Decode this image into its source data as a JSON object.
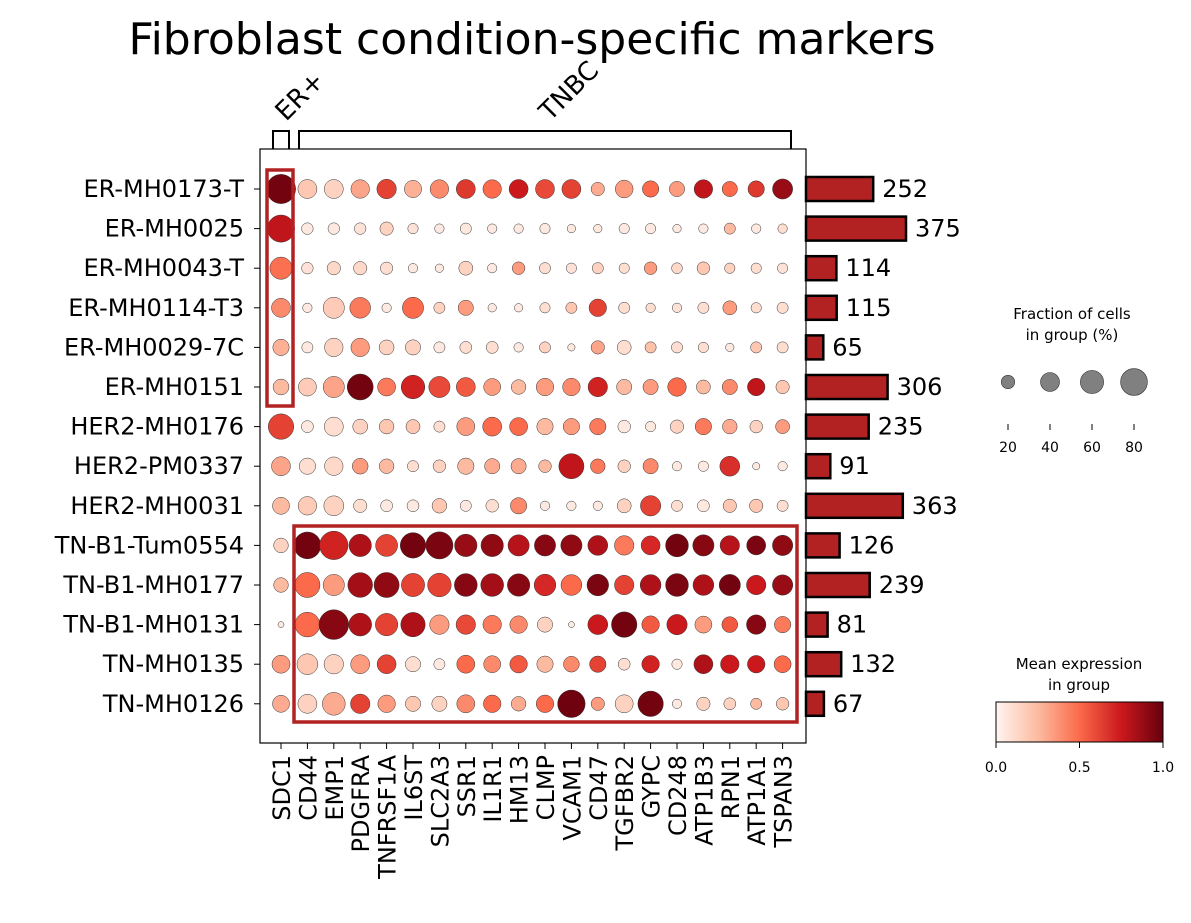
{
  "chart_data": {
    "type": "dotplot",
    "title": "Fibroblast condition-specific markers",
    "groups": [
      {
        "label": "ER+",
        "genes": [
          "SDC1"
        ]
      },
      {
        "label": "TNBC",
        "genes": [
          "CD44",
          "EMP1",
          "PDGFRA",
          "TNFRSF1A",
          "IL6ST",
          "SLC2A3",
          "SSR1",
          "IL1R1",
          "HM13",
          "CLMP",
          "VCAM1",
          "CD47",
          "TGFBR2",
          "GYPC",
          "CD248",
          "ATP1B3",
          "RPN1",
          "ATP1A1",
          "TSPAN3"
        ]
      }
    ],
    "genes": [
      "SDC1",
      "CD44",
      "EMP1",
      "PDGFRA",
      "TNFRSF1A",
      "IL6ST",
      "SLC2A3",
      "SSR1",
      "IL1R1",
      "HM13",
      "CLMP",
      "VCAM1",
      "CD47",
      "TGFBR2",
      "GYPC",
      "CD248",
      "ATP1B3",
      "RPN1",
      "ATP1A1",
      "TSPAN3"
    ],
    "samples": [
      "ER-MH0173-T",
      "ER-MH0025",
      "ER-MH0043-T",
      "ER-MH0114-T3",
      "ER-MH0029-7C",
      "ER-MH0151",
      "HER2-MH0176",
      "HER2-PM0337",
      "HER2-MH0031",
      "TN-B1-Tum0554",
      "TN-B1-MH0177",
      "TN-B1-MH0131",
      "TN-MH0135",
      "TN-MH0126"
    ],
    "cell_counts": [
      252,
      375,
      114,
      115,
      65,
      306,
      235,
      91,
      363,
      126,
      239,
      81,
      132,
      67
    ],
    "fraction_pct": [
      [
        95,
        40,
        40,
        38,
        42,
        33,
        38,
        40,
        38,
        40,
        40,
        40,
        20,
        35,
        30,
        26,
        38,
        26,
        30,
        45
      ],
      [
        82,
        15,
        15,
        15,
        20,
        12,
        10,
        14,
        10,
        10,
        12,
        8,
        8,
        12,
        12,
        8,
        10,
        14,
        10,
        10
      ],
      [
        55,
        15,
        20,
        20,
        17,
        10,
        8,
        22,
        10,
        18,
        14,
        12,
        14,
        12,
        18,
        13,
        18,
        12,
        12,
        12
      ],
      [
        40,
        10,
        50,
        48,
        10,
        50,
        14,
        26,
        8,
        8,
        12,
        14,
        34,
        14,
        10,
        10,
        14,
        22,
        12,
        14
      ],
      [
        30,
        14,
        38,
        38,
        25,
        26,
        14,
        16,
        16,
        10,
        14,
        6,
        20,
        22,
        14,
        14,
        12,
        8,
        14,
        14
      ],
      [
        28,
        36,
        50,
        75,
        36,
        62,
        50,
        40,
        32,
        24,
        34,
        34,
        42,
        26,
        26,
        38,
        22,
        26,
        34,
        20
      ],
      [
        72,
        16,
        40,
        25,
        24,
        22,
        14,
        36,
        40,
        36,
        30,
        30,
        30,
        18,
        12,
        20,
        30,
        24,
        18,
        22
      ],
      [
        40,
        30,
        38,
        28,
        24,
        14,
        18,
        30,
        26,
        26,
        18,
        70,
        24,
        18,
        26,
        10,
        12,
        44,
        6,
        10
      ],
      [
        32,
        38,
        44,
        20,
        16,
        16,
        24,
        14,
        18,
        30,
        10,
        10,
        10,
        22,
        46,
        14,
        16,
        20,
        20,
        14
      ],
      [
        24,
        80,
        90,
        56,
        54,
        72,
        82,
        56,
        56,
        50,
        50,
        50,
        44,
        42,
        40,
        58,
        50,
        42,
        40,
        46
      ],
      [
        24,
        70,
        50,
        68,
        70,
        60,
        62,
        58,
        58,
        56,
        52,
        48,
        52,
        42,
        48,
        58,
        48,
        50,
        42,
        46
      ],
      [
        4,
        68,
        98,
        58,
        56,
        66,
        42,
        42,
        38,
        34,
        26,
        4,
        44,
        72,
        34,
        46,
        32,
        28,
        42,
        30
      ],
      [
        36,
        48,
        42,
        40,
        40,
        26,
        14,
        36,
        32,
        34,
        30,
        28,
        30,
        16,
        34,
        12,
        40,
        38,
        34,
        32
      ],
      [
        32,
        40,
        58,
        42,
        34,
        26,
        26,
        36,
        34,
        24,
        34,
        84,
        20,
        36,
        72,
        10,
        20,
        16,
        14,
        18
      ]
    ],
    "mean_expression": [
      [
        0.97,
        0.2,
        0.15,
        0.32,
        0.62,
        0.28,
        0.4,
        0.65,
        0.5,
        0.75,
        0.6,
        0.62,
        0.3,
        0.35,
        0.5,
        0.35,
        0.78,
        0.5,
        0.65,
        0.88
      ],
      [
        0.78,
        0.05,
        0.05,
        0.08,
        0.15,
        0.08,
        0.05,
        0.06,
        0.05,
        0.05,
        0.05,
        0.05,
        0.06,
        0.05,
        0.05,
        0.05,
        0.05,
        0.25,
        0.05,
        0.1
      ],
      [
        0.48,
        0.08,
        0.12,
        0.12,
        0.1,
        0.05,
        0.05,
        0.15,
        0.05,
        0.35,
        0.1,
        0.08,
        0.15,
        0.1,
        0.35,
        0.12,
        0.2,
        0.15,
        0.1,
        0.08
      ],
      [
        0.4,
        0.05,
        0.18,
        0.45,
        0.05,
        0.5,
        0.15,
        0.35,
        0.05,
        0.05,
        0.1,
        0.2,
        0.62,
        0.1,
        0.1,
        0.08,
        0.1,
        0.35,
        0.1,
        0.1
      ],
      [
        0.28,
        0.05,
        0.15,
        0.35,
        0.15,
        0.15,
        0.05,
        0.1,
        0.1,
        0.05,
        0.15,
        0.05,
        0.32,
        0.1,
        0.22,
        0.1,
        0.1,
        0.05,
        0.2,
        0.1
      ],
      [
        0.25,
        0.18,
        0.32,
        0.97,
        0.45,
        0.72,
        0.6,
        0.55,
        0.35,
        0.25,
        0.35,
        0.4,
        0.72,
        0.25,
        0.35,
        0.5,
        0.25,
        0.4,
        0.78,
        0.2
      ],
      [
        0.62,
        0.05,
        0.1,
        0.15,
        0.2,
        0.2,
        0.1,
        0.35,
        0.5,
        0.5,
        0.25,
        0.35,
        0.45,
        0.05,
        0.05,
        0.15,
        0.45,
        0.3,
        0.15,
        0.35
      ],
      [
        0.32,
        0.1,
        0.12,
        0.35,
        0.25,
        0.1,
        0.15,
        0.25,
        0.3,
        0.3,
        0.25,
        0.78,
        0.45,
        0.15,
        0.4,
        0.05,
        0.05,
        0.68,
        0.05,
        0.05
      ],
      [
        0.25,
        0.18,
        0.15,
        0.1,
        0.05,
        0.05,
        0.2,
        0.05,
        0.1,
        0.4,
        0.05,
        0.05,
        0.05,
        0.15,
        0.62,
        0.1,
        0.05,
        0.2,
        0.2,
        0.1
      ],
      [
        0.15,
        0.97,
        0.72,
        0.82,
        0.62,
        0.97,
        0.95,
        0.88,
        0.9,
        0.8,
        0.92,
        0.9,
        0.82,
        0.45,
        0.7,
        0.97,
        0.92,
        0.8,
        0.95,
        0.9
      ],
      [
        0.25,
        0.5,
        0.35,
        0.85,
        0.9,
        0.62,
        0.62,
        0.92,
        0.85,
        0.92,
        0.7,
        0.5,
        0.95,
        0.62,
        0.82,
        0.95,
        0.82,
        0.97,
        0.75,
        0.88
      ],
      [
        0.05,
        0.5,
        0.92,
        0.82,
        0.62,
        0.82,
        0.35,
        0.6,
        0.45,
        0.4,
        0.15,
        0.05,
        0.75,
        0.97,
        0.55,
        0.75,
        0.35,
        0.55,
        0.92,
        0.45
      ],
      [
        0.35,
        0.2,
        0.15,
        0.35,
        0.62,
        0.1,
        0.05,
        0.5,
        0.4,
        0.55,
        0.25,
        0.4,
        0.62,
        0.1,
        0.72,
        0.05,
        0.82,
        0.75,
        0.75,
        0.5
      ],
      [
        0.3,
        0.15,
        0.3,
        0.62,
        0.35,
        0.2,
        0.15,
        0.4,
        0.5,
        0.3,
        0.5,
        0.98,
        0.35,
        0.15,
        0.97,
        0.05,
        0.15,
        0.15,
        0.25,
        0.2
      ]
    ],
    "size_legend": {
      "title_line1": "Fraction of cells",
      "title_line2": "in group (%)",
      "ticks": [
        20,
        40,
        60,
        80
      ]
    },
    "color_legend": {
      "title_line1": "Mean expression",
      "title_line2": "in group",
      "range": [
        0.0,
        1.0
      ],
      "tick_labels": [
        "0.0",
        "0.5",
        "1.0"
      ],
      "colormap": "Reds"
    },
    "highlight_color": "#b22222",
    "bar_color": "#b22222"
  }
}
